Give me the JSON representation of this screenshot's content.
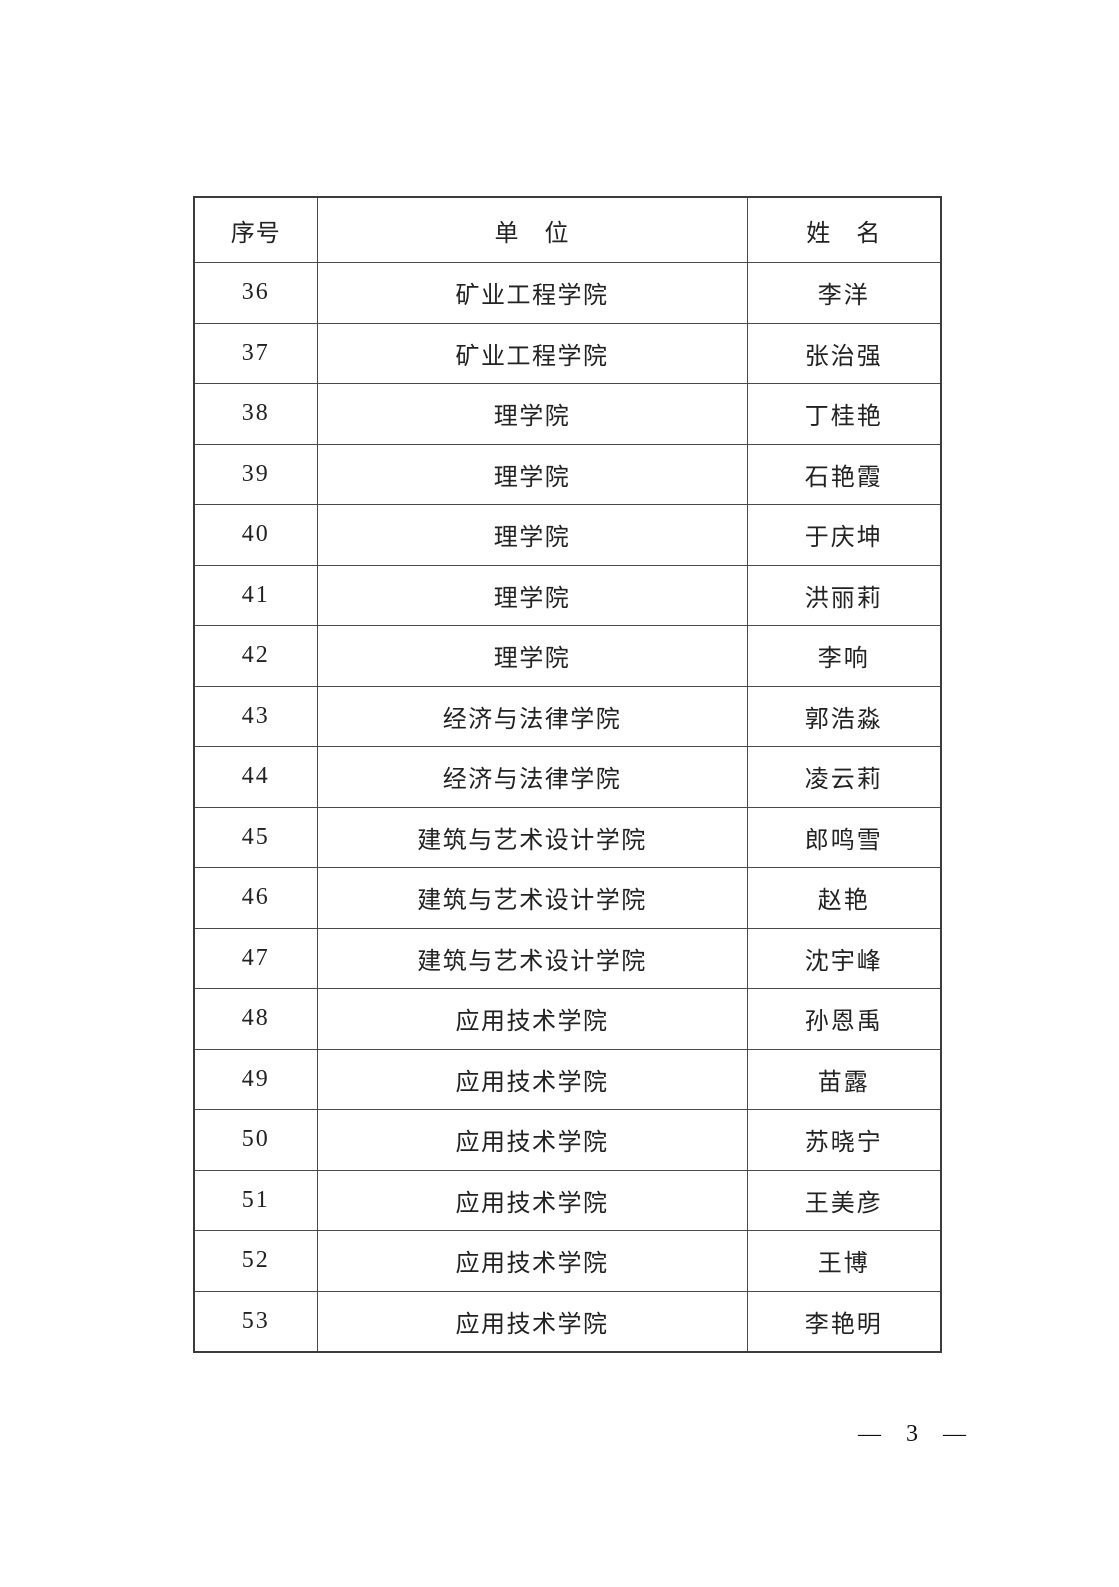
{
  "table": {
    "headers": [
      "序号",
      "单　位",
      "姓　名"
    ],
    "rows": [
      {
        "no": "36",
        "unit": "矿业工程学院",
        "name": "李洋"
      },
      {
        "no": "37",
        "unit": "矿业工程学院",
        "name": "张治强"
      },
      {
        "no": "38",
        "unit": "理学院",
        "name": "丁桂艳"
      },
      {
        "no": "39",
        "unit": "理学院",
        "name": "石艳霞"
      },
      {
        "no": "40",
        "unit": "理学院",
        "name": "于庆坤"
      },
      {
        "no": "41",
        "unit": "理学院",
        "name": "洪丽莉"
      },
      {
        "no": "42",
        "unit": "理学院",
        "name": "李响"
      },
      {
        "no": "43",
        "unit": "经济与法律学院",
        "name": "郭浩淼"
      },
      {
        "no": "44",
        "unit": "经济与法律学院",
        "name": "凌云莉"
      },
      {
        "no": "45",
        "unit": "建筑与艺术设计学院",
        "name": "郎鸣雪"
      },
      {
        "no": "46",
        "unit": "建筑与艺术设计学院",
        "name": "赵艳"
      },
      {
        "no": "47",
        "unit": "建筑与艺术设计学院",
        "name": "沈宇峰"
      },
      {
        "no": "48",
        "unit": "应用技术学院",
        "name": "孙恩禹"
      },
      {
        "no": "49",
        "unit": "应用技术学院",
        "name": "苗露"
      },
      {
        "no": "50",
        "unit": "应用技术学院",
        "name": "苏晓宁"
      },
      {
        "no": "51",
        "unit": "应用技术学院",
        "name": "王美彦"
      },
      {
        "no": "52",
        "unit": "应用技术学院",
        "name": "王博"
      },
      {
        "no": "53",
        "unit": "应用技术学院",
        "name": "李艳明"
      }
    ]
  },
  "footer": {
    "left_dash": "—",
    "page_number": "3",
    "right_dash": "—"
  }
}
